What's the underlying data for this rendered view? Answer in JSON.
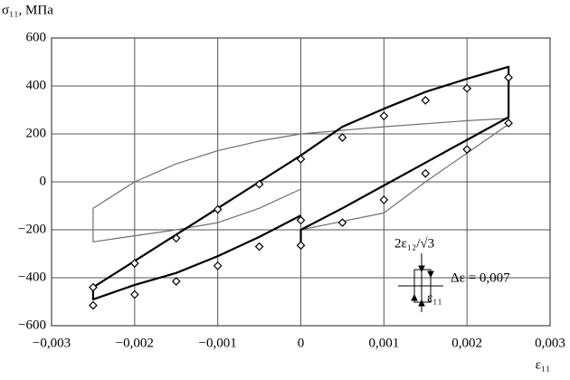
{
  "chart_data": {
    "type": "line",
    "y_label": "σ₁₁, МПа",
    "x_label": "ε₁₁",
    "annotations": {
      "inset_top": "2ε₁₂/√3",
      "inset_bottom": "ε₁₁",
      "delta": "Δε = 0,007"
    },
    "xlim": [
      -0.003,
      0.003
    ],
    "ylim": [
      -600,
      600
    ],
    "xticks": [
      {
        "value": -0.003,
        "label": "−0,003"
      },
      {
        "value": -0.002,
        "label": "−0,002"
      },
      {
        "value": -0.001,
        "label": "−0,001"
      },
      0,
      {
        "value": 0.001,
        "label": "0,001"
      },
      {
        "value": 0.002,
        "label": "0,002"
      },
      {
        "value": 0.003,
        "label": "0,003"
      }
    ],
    "yticks": [
      {
        "value": -600,
        "label": "−600"
      },
      {
        "value": -400,
        "label": "−400"
      },
      {
        "value": -200,
        "label": "−200"
      },
      0,
      200,
      400,
      600
    ],
    "grid": true,
    "series": [
      {
        "type": "line",
        "color": "#707070",
        "width": 1.2,
        "x": [
          -0.0025,
          -0.002,
          -0.0015,
          -0.001,
          -0.0005,
          0,
          0.001,
          0.002,
          0.0025,
          0.0025,
          0.002,
          0.0015,
          0.001,
          0.0005,
          0,
          null,
          0,
          -0.0005,
          -0.001,
          -0.0015,
          -0.002,
          -0.0025,
          -0.0025
        ],
        "values": [
          -110,
          0,
          75,
          130,
          170,
          200,
          230,
          255,
          265,
          240,
          120,
          0,
          -130,
          -165,
          -200,
          null,
          -30,
          -110,
          -170,
          -200,
          -225,
          -250,
          -110
        ]
      },
      {
        "type": "line",
        "color": "#000000",
        "width": 2.2,
        "x": [
          -0.0025,
          -0.002,
          -0.0015,
          -0.001,
          -0.0005,
          0,
          0.0005,
          0.001,
          0.0015,
          0.002,
          0.0025,
          0.0025,
          0.002,
          0.0015,
          0.001,
          0.0005,
          0,
          0,
          null,
          0,
          -0.0005,
          -0.001,
          -0.0015,
          -0.002,
          -0.0025,
          -0.0025
        ],
        "values": [
          -440,
          -330,
          -220,
          -110,
          0,
          110,
          230,
          305,
          375,
          430,
          480,
          270,
          175,
          80,
          -15,
          -110,
          -200,
          -250,
          null,
          -140,
          -230,
          -310,
          -380,
          -430,
          -490,
          -440
        ]
      },
      {
        "type": "scatter",
        "color": "#000000",
        "marker": "diamond",
        "x": [
          -0.0025,
          -0.0025,
          -0.002,
          -0.002,
          -0.0015,
          -0.0015,
          -0.001,
          -0.001,
          -0.0005,
          -0.0005,
          0,
          0,
          0,
          0.0005,
          0.0005,
          0.001,
          0.001,
          0.0015,
          0.0015,
          0.002,
          0.002,
          0.0025,
          0.0025
        ],
        "values": [
          -440,
          -515,
          -340,
          -470,
          -235,
          -415,
          -115,
          -350,
          -10,
          -270,
          95,
          -160,
          -265,
          185,
          -170,
          275,
          -75,
          340,
          35,
          390,
          135,
          435,
          245
        ]
      }
    ]
  }
}
